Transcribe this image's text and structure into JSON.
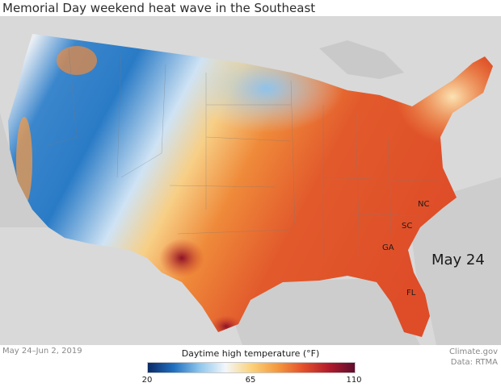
{
  "title": "Memorial Day weekend heat wave in the Southeast",
  "date_label": "May 24",
  "state_labels": [
    "NC",
    "SC",
    "GA",
    "FL"
  ],
  "date_range": "May 24–Jun 2, 2019",
  "credit_line1": "Climate.gov",
  "credit_line2": "Data: RTMA",
  "legend": {
    "title": "Daytime high temperature (°F)",
    "ticks": [
      "20",
      "65",
      "110"
    ],
    "colors": [
      "#0a2a66",
      "#1f6fc0",
      "#8ec6ec",
      "#f3f7fb",
      "#fbd27a",
      "#f49a3f",
      "#e4502a",
      "#b21b2b",
      "#5e0d2e"
    ]
  },
  "colors": {
    "land_outside": "#d9d9d9",
    "water": "#c8c8c8",
    "cold": "#2c7cc8",
    "cool": "#9ccbee",
    "neutral": "#eef2f6",
    "warm": "#f8bc63",
    "hot": "#e5552c",
    "hottest": "#a3152b"
  }
}
